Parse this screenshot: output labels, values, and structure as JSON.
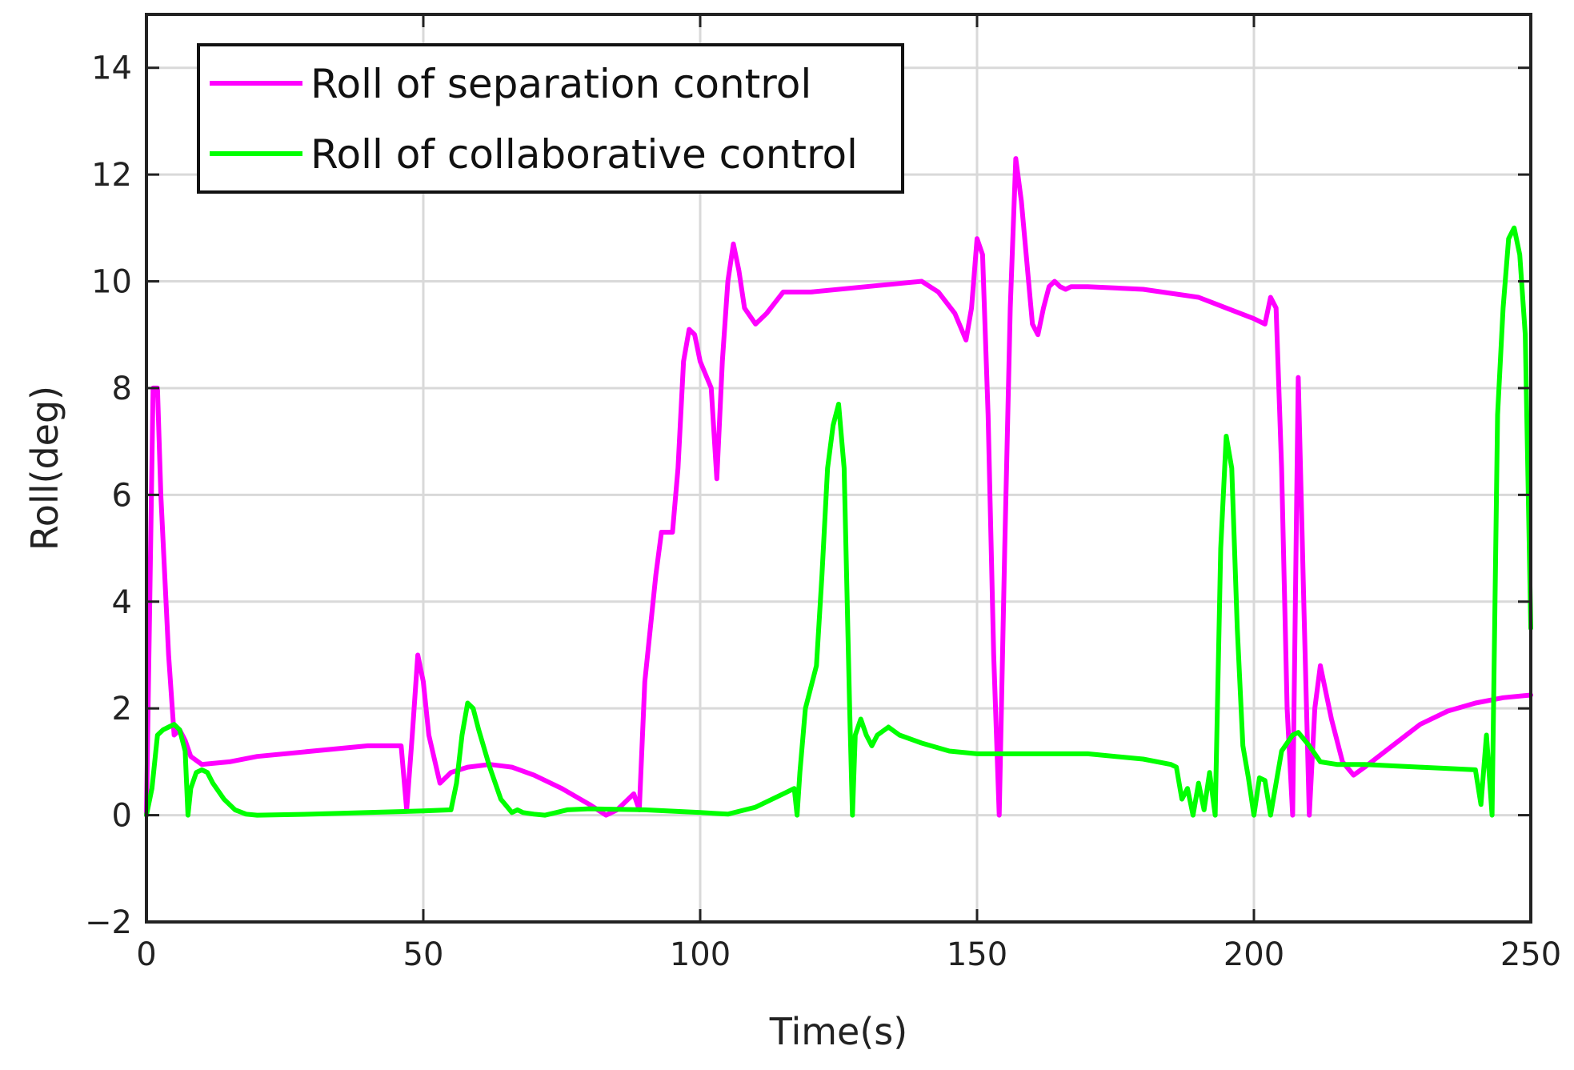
{
  "chart_data": {
    "type": "line",
    "title": "",
    "xlabel": "Time(s)",
    "ylabel": "Roll(deg)",
    "xlim": [
      0,
      250
    ],
    "ylim": [
      -2,
      15
    ],
    "xticks": [
      0,
      50,
      100,
      150,
      200,
      250
    ],
    "yticks": [
      -2,
      0,
      2,
      4,
      6,
      8,
      10,
      12,
      14
    ],
    "xtick_labels": [
      "0",
      "50",
      "100",
      "150",
      "200",
      "250"
    ],
    "ytick_labels": [
      "−2",
      "0",
      "2",
      "4",
      "6",
      "8",
      "10",
      "12",
      "14"
    ],
    "grid": true,
    "legend_position": "top-left",
    "series": [
      {
        "name": "Roll of separation control",
        "color": "#ff00ff",
        "x": [
          0,
          1.2,
          2,
          2.6,
          4,
          5,
          6,
          7,
          8,
          10,
          15,
          20,
          30,
          40,
          46,
          47,
          48,
          49,
          50,
          51,
          53,
          55,
          58,
          62,
          66,
          70,
          75,
          80,
          83,
          85,
          87,
          88,
          89,
          90,
          92,
          93,
          95,
          96,
          97,
          98,
          99,
          100,
          102,
          103,
          104,
          105,
          106,
          107,
          108,
          110,
          112,
          115,
          120,
          130,
          140,
          143,
          146,
          148,
          149,
          150,
          151,
          152,
          153,
          154,
          155,
          156,
          157,
          158,
          160,
          161,
          162,
          163,
          164,
          165,
          166,
          167,
          170,
          180,
          190,
          200,
          202,
          203,
          204,
          205,
          206,
          207,
          208,
          209,
          210,
          211,
          212,
          214,
          216,
          218,
          220,
          225,
          230,
          235,
          240,
          245,
          250
        ],
        "y": [
          0,
          8,
          8,
          6,
          3,
          1.5,
          1.6,
          1.4,
          1.1,
          0.95,
          1.0,
          1.1,
          1.2,
          1.3,
          1.3,
          0.1,
          1.5,
          3.0,
          2.5,
          1.5,
          0.6,
          0.8,
          0.9,
          0.95,
          0.9,
          0.75,
          0.5,
          0.2,
          0.0,
          0.1,
          0.3,
          0.4,
          0.1,
          2.5,
          4.5,
          5.3,
          5.3,
          6.5,
          8.5,
          9.1,
          9.0,
          8.5,
          8.0,
          6.3,
          8.5,
          10.0,
          10.7,
          10.2,
          9.5,
          9.2,
          9.4,
          9.8,
          9.8,
          9.9,
          10.0,
          9.8,
          9.4,
          8.9,
          9.5,
          10.8,
          10.5,
          7.5,
          3.0,
          0.0,
          5.0,
          9.5,
          12.3,
          11.5,
          9.2,
          9.0,
          9.5,
          9.9,
          10.0,
          9.9,
          9.85,
          9.9,
          9.9,
          9.85,
          9.7,
          9.3,
          9.2,
          9.7,
          9.5,
          6.5,
          2.0,
          0.0,
          8.2,
          4.0,
          0.0,
          2.0,
          2.8,
          1.8,
          1.0,
          0.75,
          0.9,
          1.3,
          1.7,
          1.95,
          2.1,
          2.2,
          2.25
        ]
      },
      {
        "name": "Roll of collaborative control",
        "color": "#00ff00",
        "x": [
          0,
          1,
          2,
          3,
          4,
          5,
          6,
          7,
          7.5,
          8,
          9,
          10,
          11,
          12,
          14,
          16,
          18,
          20,
          30,
          40,
          50,
          55,
          56,
          57,
          58,
          59,
          60,
          62,
          64,
          66,
          67,
          68,
          70,
          72,
          74,
          76,
          80,
          90,
          100,
          105,
          110,
          115,
          117,
          117.5,
          118,
          119,
          120,
          121,
          122,
          123,
          124,
          125,
          126,
          127,
          127.5,
          128,
          129,
          130,
          131,
          132,
          134,
          136,
          140,
          145,
          150,
          160,
          170,
          180,
          185,
          186,
          187,
          188,
          189,
          190,
          191,
          192,
          193,
          194,
          195,
          196,
          197,
          198,
          199,
          200,
          201,
          202,
          203,
          205,
          207,
          208,
          210,
          212,
          215,
          220,
          230,
          240,
          241,
          242,
          243,
          244,
          245,
          246,
          247,
          248,
          249,
          250
        ],
        "y": [
          0,
          0.5,
          1.5,
          1.6,
          1.65,
          1.7,
          1.6,
          1.2,
          0.0,
          0.5,
          0.8,
          0.85,
          0.8,
          0.6,
          0.3,
          0.1,
          0.02,
          0.0,
          0.02,
          0.05,
          0.08,
          0.1,
          0.6,
          1.5,
          2.1,
          2.0,
          1.6,
          0.9,
          0.3,
          0.05,
          0.1,
          0.05,
          0.02,
          0.0,
          0.05,
          0.1,
          0.12,
          0.1,
          0.05,
          0.02,
          0.15,
          0.4,
          0.5,
          0.0,
          0.8,
          2.0,
          2.4,
          2.8,
          4.5,
          6.5,
          7.3,
          7.7,
          6.5,
          2.0,
          0.0,
          1.5,
          1.8,
          1.5,
          1.3,
          1.5,
          1.65,
          1.5,
          1.35,
          1.2,
          1.15,
          1.15,
          1.15,
          1.05,
          0.95,
          0.9,
          0.3,
          0.5,
          0.0,
          0.6,
          0.1,
          0.8,
          0.0,
          5.0,
          7.1,
          6.5,
          3.5,
          1.3,
          0.7,
          0.0,
          0.7,
          0.65,
          0.0,
          1.2,
          1.5,
          1.55,
          1.3,
          1.0,
          0.95,
          0.95,
          0.9,
          0.85,
          0.2,
          1.5,
          0.0,
          7.5,
          9.5,
          10.8,
          11.0,
          10.5,
          9.0,
          3.5
        ]
      }
    ]
  }
}
